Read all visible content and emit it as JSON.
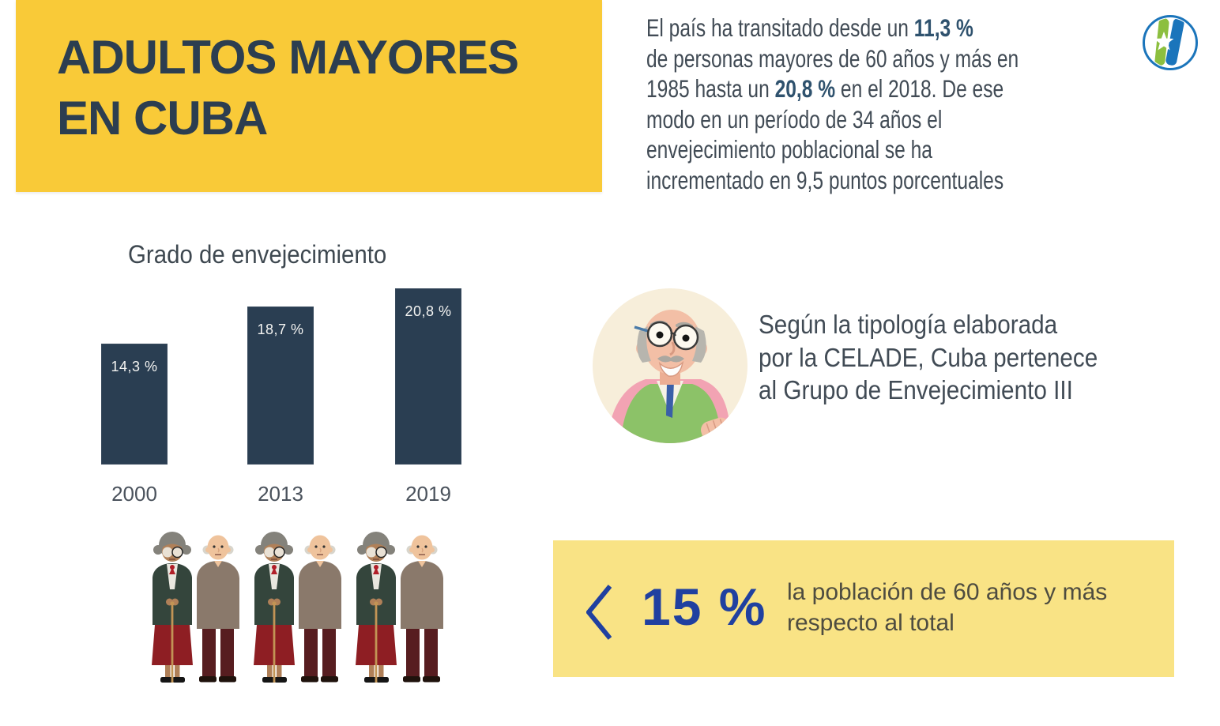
{
  "header": {
    "title": "ADULTOS MAYORES\nEN CUBA",
    "bg_color": "#F9CA38",
    "text_color": "#2C3E50"
  },
  "intro": {
    "segments": [
      {
        "text": "El país ha transitado desde un ",
        "bold": false
      },
      {
        "text": "11,3 %",
        "bold": true
      },
      {
        "text": "\nde personas mayores de 60 años y más en\n1985 hasta un ",
        "bold": false
      },
      {
        "text": "20,8 %",
        "bold": true
      },
      {
        "text": " en el 2018. De ese\nmodo en un período de 34 años el\nenvejecimiento poblacional se ha\nincrementado en 9,5 puntos porcentuales",
        "bold": false
      }
    ],
    "text_color": "#414B55",
    "highlight_color": "#2F526E"
  },
  "logo": {
    "name": "onei-circle-star-logo",
    "ring_color": "#1B75BB",
    "green": "#8CBF3F",
    "blue": "#1B75BB"
  },
  "chart_data": {
    "type": "bar",
    "title": "Grado de envejecimiento",
    "categories": [
      "2000",
      "2013",
      "2019"
    ],
    "values": [
      14.3,
      18.7,
      20.8
    ],
    "value_labels": [
      "14,3 %",
      "18,7 %",
      "20,8 %"
    ],
    "xlabel": "",
    "ylabel": "",
    "ylim": [
      0,
      21
    ],
    "grid": false,
    "legend": false,
    "bar_color": "#2A3E52",
    "value_label_position": "inside-top"
  },
  "celade": {
    "text": "Según la tipología elaborada\npor la CELADE,  Cuba pertenece\nal Grupo de Envejecimiento III"
  },
  "threshold_box": {
    "symbol": "<",
    "value": "15 %",
    "caption": "la población de 60 años y más\nrespecto al total",
    "bg_color": "#F9E385",
    "value_color": "#2040A0",
    "caption_color": "#4E4C40"
  },
  "illustrations": {
    "avatar": "elderly-man-with-glasses",
    "crowd": "three-elderly-couples-with-canes"
  }
}
